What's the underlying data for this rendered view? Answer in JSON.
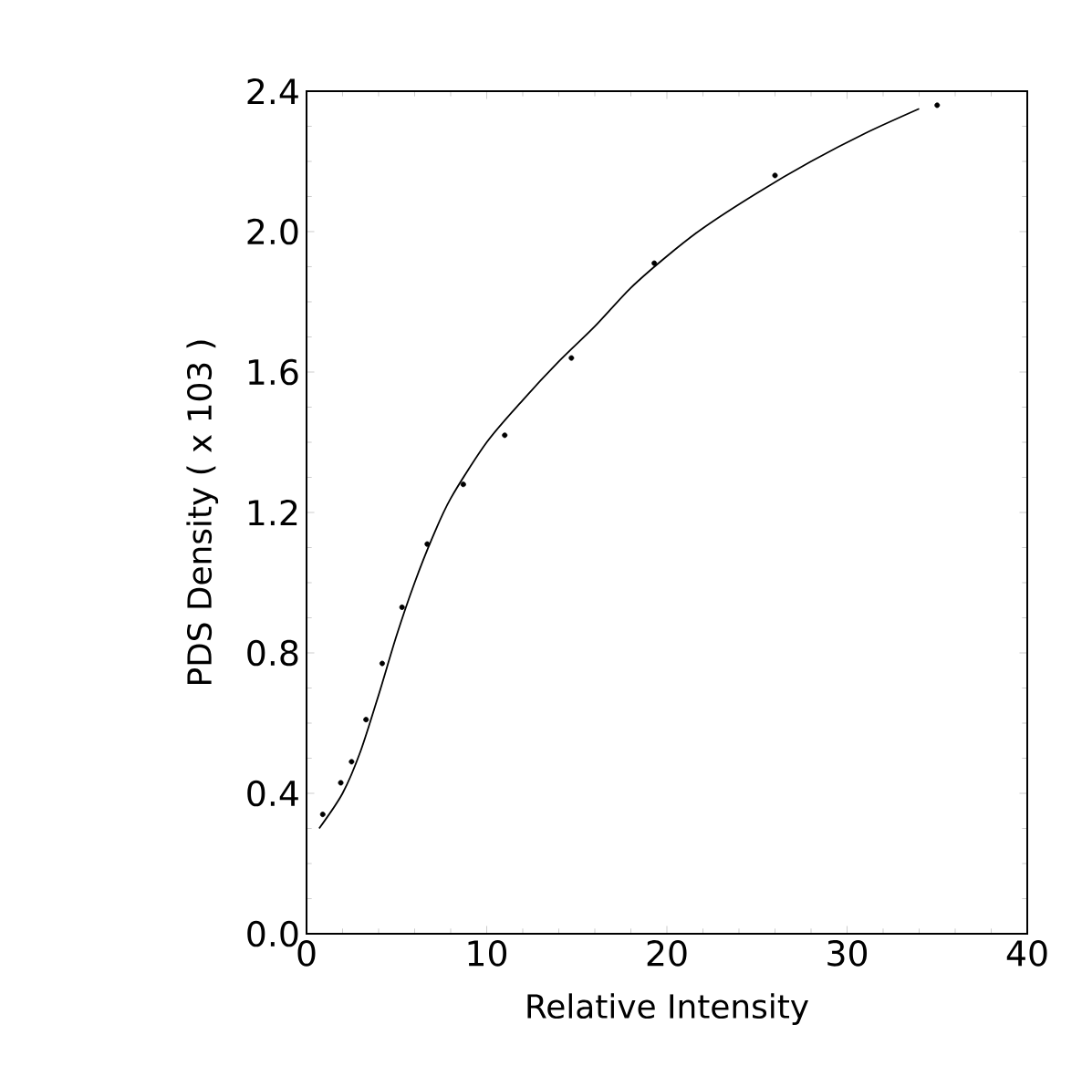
{
  "chart_data": {
    "type": "scatter",
    "xlabel": "Relative Intensity",
    "ylabel": "PDS Density ( x 103 )",
    "xlim": [
      0,
      40
    ],
    "ylim": [
      0,
      2.4
    ],
    "xticks": [
      0,
      10,
      20,
      30,
      40
    ],
    "yticks": [
      {
        "value": 0,
        "label": "0.0"
      },
      0.4,
      0.8,
      1.2,
      1.6,
      {
        "value": 2,
        "label": "2.0"
      },
      2.4
    ],
    "grid": false,
    "series": [
      {
        "marker": "circle",
        "color": "#000000",
        "x": [
          0.9,
          1.9,
          2.5,
          3.3,
          4.2,
          5.3,
          6.7,
          8.7,
          11.0,
          14.7,
          19.3,
          26.0,
          35.0
        ],
        "values": [
          0.34,
          0.43,
          0.49,
          0.61,
          0.77,
          0.93,
          1.11,
          1.28,
          1.42,
          1.64,
          1.91,
          2.16,
          2.36
        ]
      },
      {
        "type": "line",
        "color": "#000000",
        "marker": "none",
        "line_style": "solid",
        "x": [
          0.7,
          2,
          3,
          4,
          5,
          6,
          7,
          8,
          10,
          12,
          14,
          16,
          18,
          20,
          22,
          25,
          28,
          31,
          34
        ],
        "values": [
          0.3,
          0.4,
          0.52,
          0.68,
          0.85,
          1.0,
          1.13,
          1.24,
          1.4,
          1.52,
          1.63,
          1.73,
          1.84,
          1.93,
          2.01,
          2.11,
          2.2,
          2.28,
          2.35
        ]
      }
    ]
  }
}
